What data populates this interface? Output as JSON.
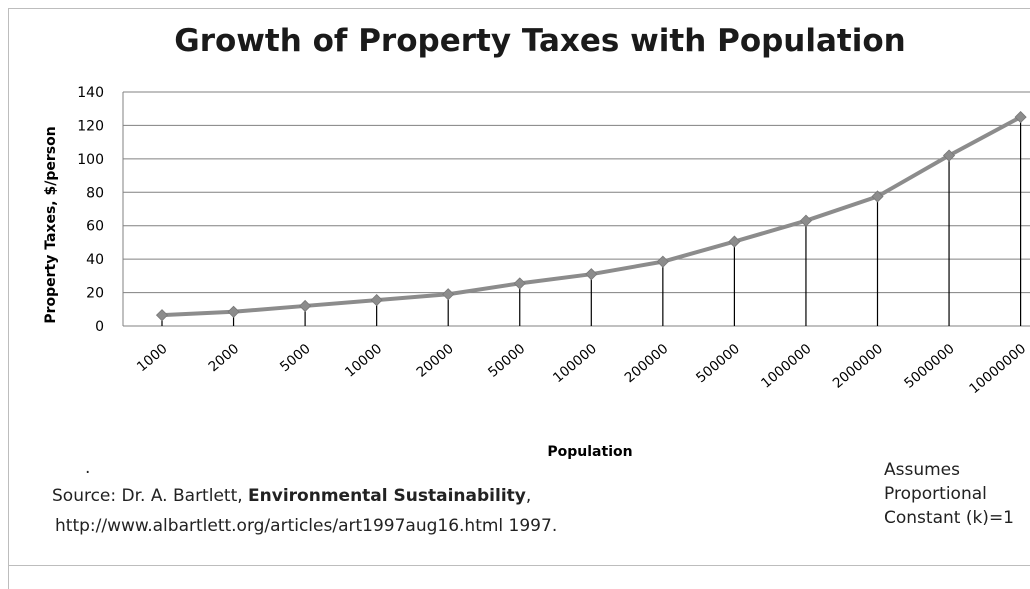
{
  "chart_data": {
    "type": "line",
    "title": "Growth of Property Taxes with Population",
    "xlabel": "Population",
    "ylabel": "Property Taxes, $/person",
    "categories": [
      "1000",
      "2000",
      "5000",
      "10000",
      "20000",
      "50000",
      "100000",
      "200000",
      "500000",
      "1000000",
      "2000000",
      "5000000",
      "10000000"
    ],
    "series": [
      {
        "values": [
          6.5,
          8.5,
          12,
          15.5,
          19,
          25.5,
          31,
          38.5,
          50.5,
          63,
          77.5,
          102,
          125
        ]
      }
    ],
    "ylim": [
      0,
      140
    ],
    "yticks": [
      "0",
      "20",
      "40",
      "60",
      "80",
      "100",
      "120",
      "140"
    ],
    "grid": true,
    "drop_lines": true,
    "colors": {
      "line": "#8c8c8c",
      "marker": "#8c8c8c",
      "grid": "#808080",
      "drop": "#000000"
    }
  },
  "notes": {
    "dot": ".",
    "source_prefix": "Source:  Dr. A. Bartlett, ",
    "source_bold": "Environmental Sustainability",
    "source_suffix": ",",
    "source_line2": "http://www.albartlett.org/articles/art1997aug16.html 1997.",
    "assumes_1": "Assumes",
    "assumes_2": "Proportional",
    "assumes_3": "Constant (k)=1"
  }
}
